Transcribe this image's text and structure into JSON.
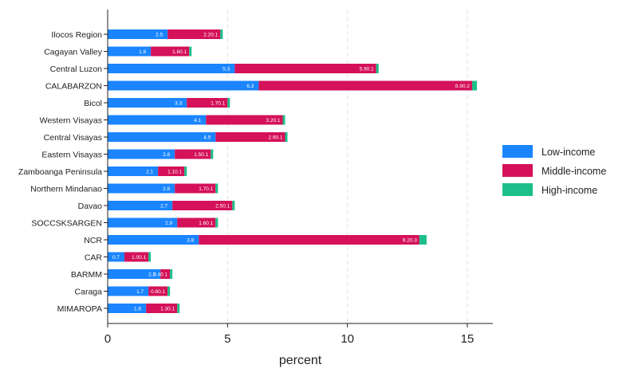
{
  "chart_data": {
    "type": "bar",
    "orientation": "horizontal",
    "stacked": true,
    "categories": [
      "Ilocos Region",
      "Cagayan Valley",
      "Central Luzon",
      "CALABARZON",
      "Bicol",
      "Western Visayas",
      "Central Visayas",
      "Eastern Visayas",
      "Zamboanga Peninsula",
      "Northern Mindanao",
      "Davao",
      "SOCCSKSARGEN",
      "NCR",
      "CAR",
      "BARMM",
      "Caraga",
      "MIMAROPA"
    ],
    "series": [
      {
        "name": "Low-income",
        "color": "#1a85ff",
        "values": [
          2.5,
          1.8,
          5.3,
          6.3,
          3.3,
          4.1,
          4.5,
          2.8,
          2.1,
          2.8,
          2.7,
          2.9,
          3.8,
          0.7,
          2.2,
          1.7,
          1.6
        ]
      },
      {
        "name": "Middle-income",
        "color": "#d41159",
        "values": [
          2.2,
          1.6,
          5.9,
          8.9,
          1.7,
          3.2,
          2.9,
          1.5,
          1.1,
          1.7,
          2.5,
          1.6,
          9.2,
          1.0,
          0.4,
          0.8,
          1.3
        ]
      },
      {
        "name": "High-income",
        "color": "#1cbf8a",
        "values": [
          0.1,
          0.1,
          0.1,
          0.2,
          0.1,
          0.1,
          0.1,
          0.1,
          0.1,
          0.1,
          0.1,
          0.1,
          0.3,
          0.1,
          0.1,
          0.1,
          0.1
        ]
      }
    ],
    "data_labels": {
      "low": [
        "2.5",
        "1.8",
        "5.3",
        "6.3",
        "3.3",
        "4.1",
        "4.5",
        "2.8",
        "2.1",
        "2.8",
        "2.7",
        "2.9",
        "3.8",
        "0.7",
        "2.2",
        "1.7",
        "1.6"
      ],
      "middle": [
        "2.20.1",
        "1.60.1",
        "5.90.1",
        "8.90.2",
        "1.70.1",
        "3.20.1",
        "2.90.1",
        "1.50.1",
        "1.10.1",
        "1.70.1",
        "2.50.1",
        "1.60.1",
        "9.20.3",
        "1.00.1",
        "0.40.1",
        "0.80.1",
        "1.30.1"
      ]
    },
    "xlabel": "percent",
    "xlim": [
      0,
      16
    ],
    "xticks": [
      0,
      5,
      10,
      15
    ],
    "xtick_labels": [
      "0",
      "5",
      "10",
      "15"
    ],
    "grid": "vertical dashed",
    "legend_position": "right"
  }
}
